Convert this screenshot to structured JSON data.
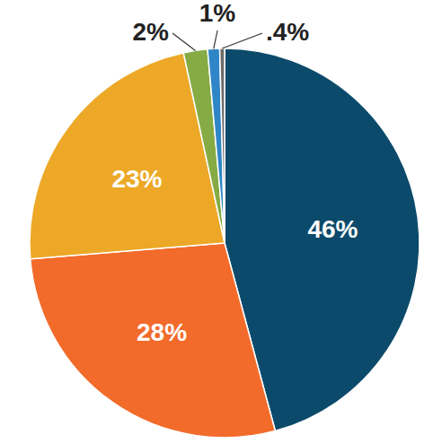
{
  "chart_data": {
    "type": "pie",
    "values": [
      46,
      28,
      23,
      2,
      1,
      0.4
    ],
    "value_labels": [
      "46%",
      "28%",
      "23%",
      "2%",
      "1%",
      ".4%"
    ],
    "colors": [
      "#0c4a6b",
      "#f26b2a",
      "#eda827",
      "#86ab45",
      "#2f86c6",
      "#6b6b6b"
    ],
    "data_labels": true
  }
}
